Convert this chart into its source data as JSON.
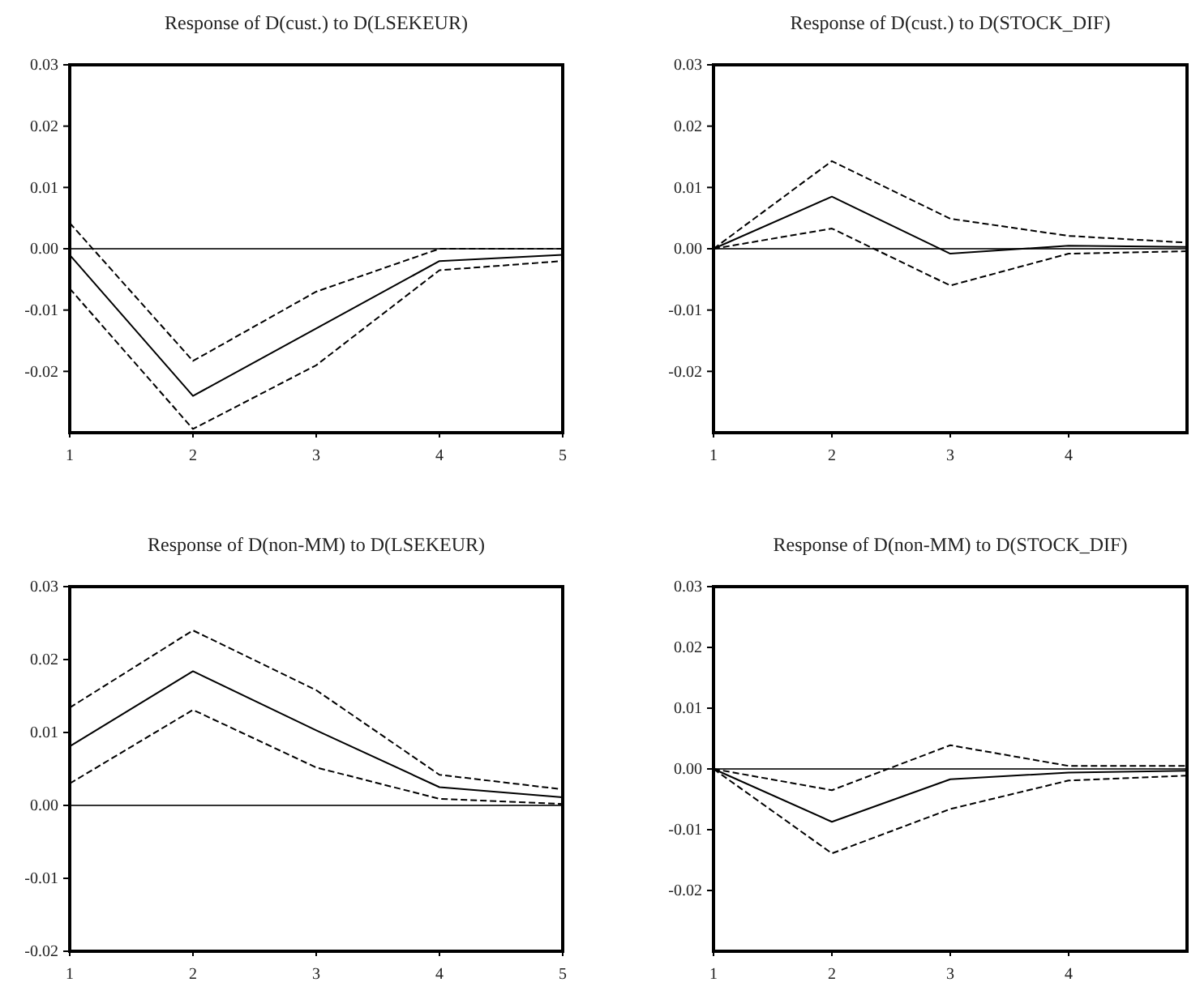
{
  "chart_data": [
    {
      "type": "line",
      "title": "Response of D(cust.) to D(LSEKEUR)",
      "x": [
        1,
        2,
        3,
        4,
        5
      ],
      "xlim": [
        1,
        5
      ],
      "xticks": [
        1,
        2,
        3,
        4,
        5
      ],
      "ylim": [
        -0.03,
        0.03
      ],
      "yticks": [
        {
          "value": 0.03,
          "label": "0.03"
        },
        {
          "value": 0.02,
          "label": "0.02"
        },
        {
          "value": 0.01,
          "label": "0.01"
        },
        {
          "value": 0,
          "label": "0.00"
        },
        {
          "value": -0.01,
          "label": "-0.01"
        },
        {
          "value": -0.02,
          "label": "-0.02"
        }
      ],
      "grid": false,
      "ref_lines": [
        {
          "axis": "y",
          "value": 0
        }
      ],
      "series": [
        {
          "color": "#000000",
          "line_style": "solid",
          "values": [
            -0.001,
            -0.024,
            -0.013,
            -0.002,
            -0.001
          ]
        },
        {
          "color": "#000000",
          "line_style": "dashed",
          "values": [
            0.0042,
            -0.0183,
            -0.007,
            0,
            0
          ]
        },
        {
          "color": "#000000",
          "line_style": "dashed",
          "values": [
            -0.0065,
            -0.0294,
            -0.019,
            -0.0035,
            -0.002
          ]
        }
      ]
    },
    {
      "type": "line",
      "title": "Response of D(cust.) to D(STOCK_DIF)",
      "x": [
        1,
        2,
        3,
        4,
        5
      ],
      "xlim": [
        1,
        5
      ],
      "xticks": [
        1,
        2,
        3,
        4
      ],
      "ylim": [
        -0.03,
        0.03
      ],
      "yticks": [
        {
          "value": 0.03,
          "label": "0.03"
        },
        {
          "value": 0.02,
          "label": "0.02"
        },
        {
          "value": 0.01,
          "label": "0.01"
        },
        {
          "value": 0,
          "label": "0.00"
        },
        {
          "value": -0.01,
          "label": "-0.01"
        },
        {
          "value": -0.02,
          "label": "-0.02"
        }
      ],
      "grid": false,
      "ref_lines": [
        {
          "axis": "y",
          "value": 0
        }
      ],
      "series": [
        {
          "color": "#000000",
          "line_style": "solid",
          "values": [
            0,
            0.0085,
            -0.0008,
            0.0005,
            0.0003
          ]
        },
        {
          "color": "#000000",
          "line_style": "dashed",
          "values": [
            0,
            0.0143,
            0.0049,
            0.0021,
            0.001
          ]
        },
        {
          "color": "#000000",
          "line_style": "dashed",
          "values": [
            0,
            0.0033,
            -0.006,
            -0.0008,
            -0.0004
          ]
        }
      ]
    },
    {
      "type": "line",
      "title": "Response of D(non-MM) to D(LSEKEUR)",
      "x": [
        1,
        2,
        3,
        4,
        5
      ],
      "xlim": [
        1,
        5
      ],
      "xticks": [
        1,
        2,
        3,
        4,
        5
      ],
      "ylim": [
        -0.02,
        0.03
      ],
      "yticks": [
        {
          "value": 0.03,
          "label": "0.03"
        },
        {
          "value": 0.02,
          "label": "0.02"
        },
        {
          "value": 0.01,
          "label": "0.01"
        },
        {
          "value": 0,
          "label": "0.00"
        },
        {
          "value": -0.01,
          "label": "-0.01"
        },
        {
          "value": -0.02,
          "label": "-0.02"
        }
      ],
      "grid": false,
      "ref_lines": [
        {
          "axis": "y",
          "value": 0
        }
      ],
      "series": [
        {
          "color": "#000000",
          "line_style": "solid",
          "values": [
            0.0081,
            0.0184,
            0.0103,
            0.0025,
            0.0011
          ]
        },
        {
          "color": "#000000",
          "line_style": "dashed",
          "values": [
            0.0134,
            0.024,
            0.0158,
            0.0042,
            0.0022
          ]
        },
        {
          "color": "#000000",
          "line_style": "dashed",
          "values": [
            0.003,
            0.0131,
            0.0052,
            0.0009,
            0.0002
          ]
        }
      ]
    },
    {
      "type": "line",
      "title": "Response of D(non-MM) to D(STOCK_DIF)",
      "x": [
        1,
        2,
        3,
        4,
        5
      ],
      "xlim": [
        1,
        5
      ],
      "xticks": [
        1,
        2,
        3,
        4
      ],
      "ylim": [
        -0.03,
        0.03
      ],
      "yticks": [
        {
          "value": 0.03,
          "label": "0.03"
        },
        {
          "value": 0.02,
          "label": "0.02"
        },
        {
          "value": 0.01,
          "label": "0.01"
        },
        {
          "value": 0,
          "label": "0.00"
        },
        {
          "value": -0.01,
          "label": "-0.01"
        },
        {
          "value": -0.02,
          "label": "-0.02"
        }
      ],
      "grid": false,
      "ref_lines": [
        {
          "axis": "y",
          "value": 0
        }
      ],
      "series": [
        {
          "color": "#000000",
          "line_style": "solid",
          "values": [
            0,
            -0.0087,
            -0.0017,
            -0.0006,
            -0.0003
          ]
        },
        {
          "color": "#000000",
          "line_style": "dashed",
          "values": [
            0,
            -0.0035,
            0.0039,
            0.0005,
            0.0005
          ]
        },
        {
          "color": "#000000",
          "line_style": "dashed",
          "values": [
            0,
            -0.0139,
            -0.0066,
            -0.0019,
            -0.0011
          ]
        }
      ]
    }
  ]
}
